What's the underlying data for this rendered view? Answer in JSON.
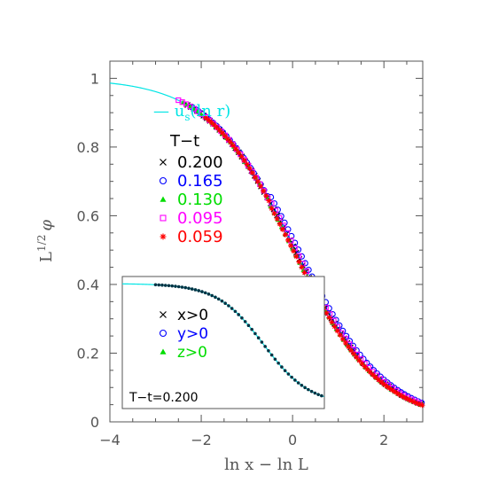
{
  "chart_data": {
    "type": "scatter",
    "title": "",
    "xlabel": "ln x − ln L",
    "ylabel": "L",
    "ylabel_exp": "1/2",
    "ylabel_var": "φ",
    "xlim": [
      -4,
      2.85
    ],
    "ylim": [
      0,
      1.05
    ],
    "x_ticks": [
      -4,
      -2,
      0,
      2
    ],
    "y_ticks": [
      0,
      0.2,
      0.4,
      0.6,
      0.8,
      1
    ],
    "x_tick_labels": [
      "−4",
      "−2",
      "0",
      "2"
    ],
    "y_tick_labels": [
      "0",
      "0.2",
      "0.4",
      "0.6",
      "0.8",
      "1"
    ],
    "curve": {
      "label_prefix": "— u",
      "label_sub": "s",
      "label_suffix": "(ln r)",
      "color": "#00e5e5",
      "x0": 0.05,
      "width": 0.95,
      "plateau": 1.0
    },
    "legend": {
      "title": "T−t",
      "placement": "left"
    },
    "series": [
      {
        "name": "0.200",
        "marker": "x",
        "color": "#000000",
        "shift": 0.0,
        "x_range": [
          -2.3,
          2.85
        ],
        "step": 0.07
      },
      {
        "name": "0.165",
        "marker": "circle",
        "color": "#0000ff",
        "shift": -0.08,
        "x_range": [
          -2.2,
          2.85
        ],
        "step": 0.075
      },
      {
        "name": "0.130",
        "marker": "triangle",
        "color": "#00dd00",
        "shift": 0.03,
        "x_range": [
          -2.4,
          2.85
        ],
        "step": 0.08
      },
      {
        "name": "0.095",
        "marker": "square",
        "color": "#ff00ff",
        "shift": -0.02,
        "x_range": [
          -2.5,
          2.85
        ],
        "step": 0.085
      },
      {
        "name": "0.059",
        "marker": "star",
        "color": "#ff0000",
        "shift": 0.04,
        "x_range": [
          -1.9,
          2.85
        ],
        "step": 0.06
      }
    ],
    "inset": {
      "label": "T−t=0.200",
      "xlim": [
        -4,
        2.85
      ],
      "ylim": [
        0,
        1.05
      ],
      "series": [
        {
          "name": "x>0",
          "marker": "x",
          "color": "#000000"
        },
        {
          "name": "y>0",
          "marker": "circle",
          "color": "#0000ff"
        },
        {
          "name": "z>0",
          "marker": "triangle",
          "color": "#00dd00"
        }
      ]
    }
  }
}
